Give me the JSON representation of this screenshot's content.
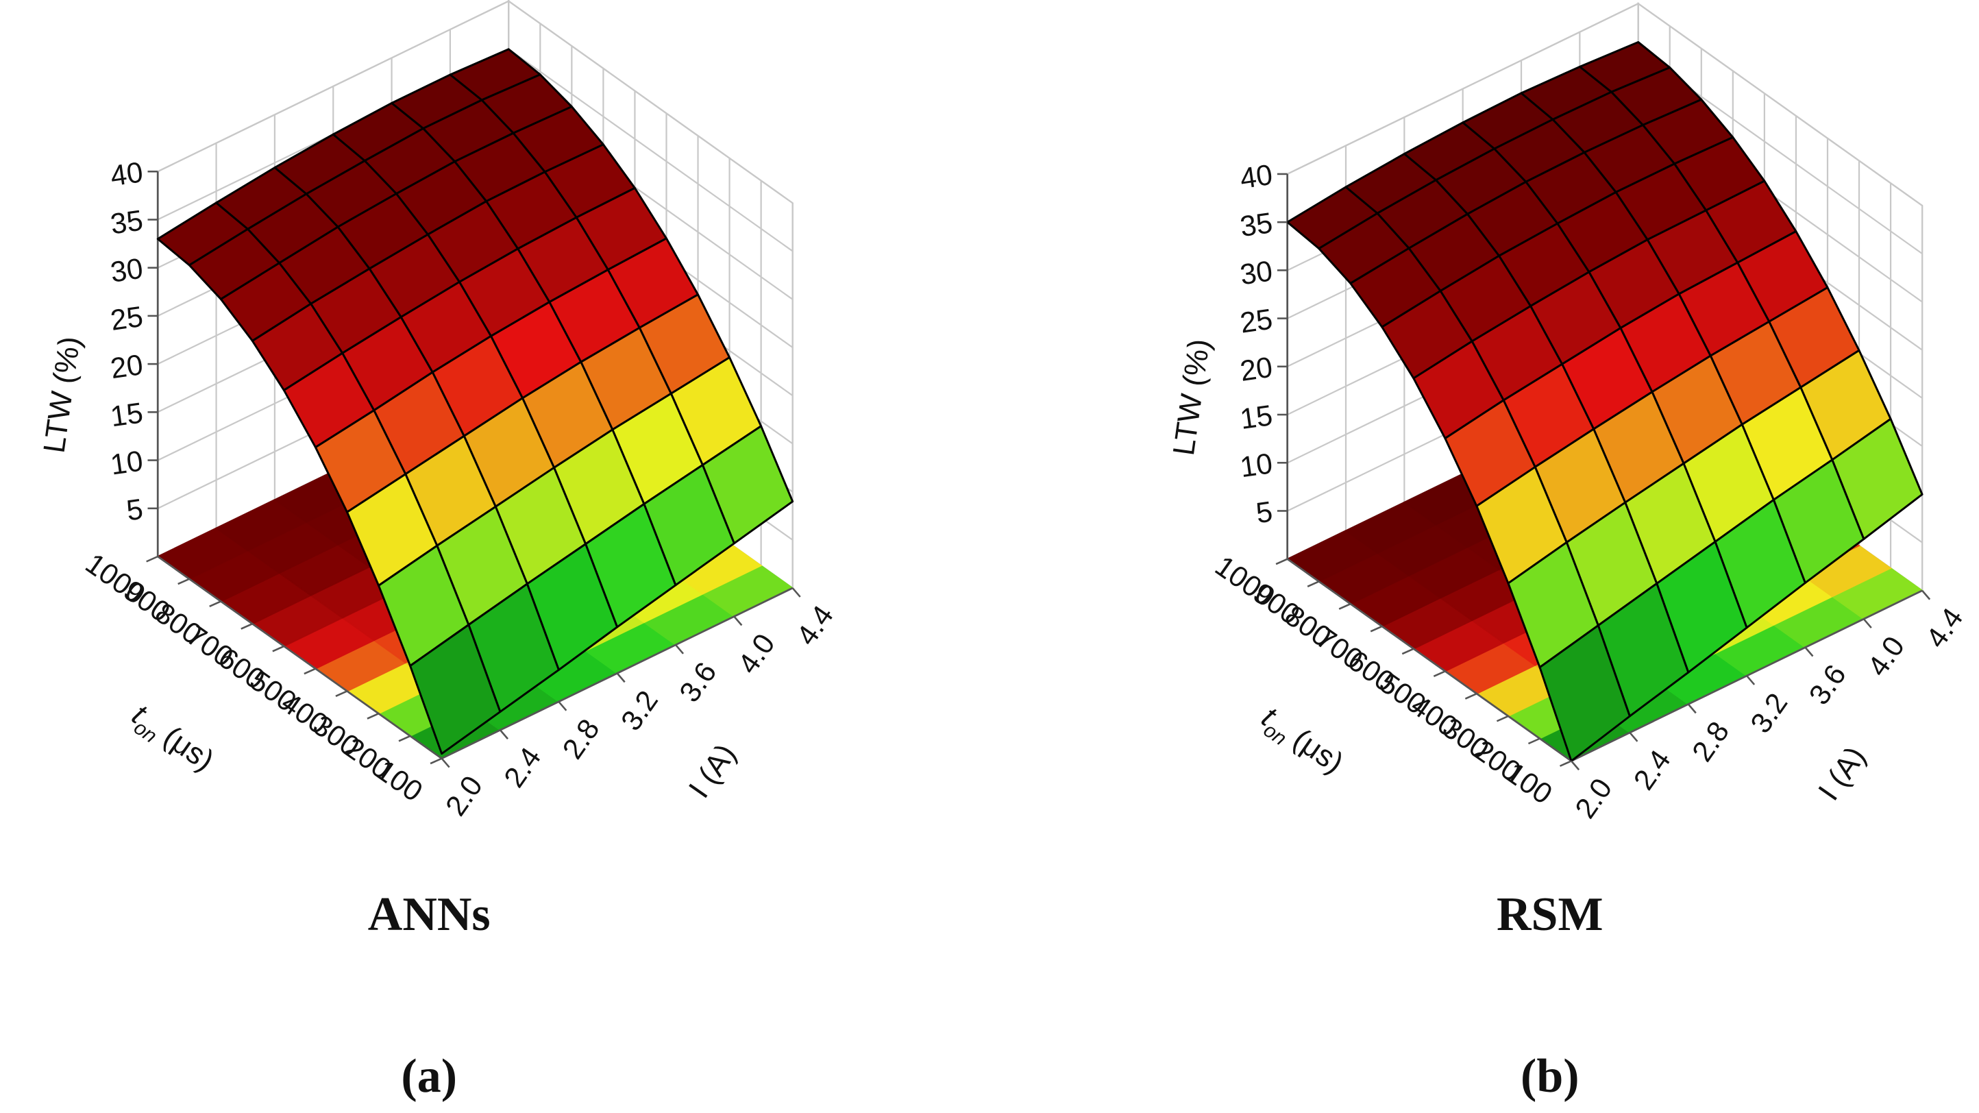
{
  "chart_data": [
    {
      "type": "surface3d",
      "title": "ANNs",
      "label": "(a)",
      "zlabel": "LTW (%)",
      "xlabel": [
        "t",
        "on",
        "(μs)"
      ],
      "ylabel": "I (A)",
      "x": [
        100,
        200,
        300,
        400,
        500,
        600,
        700,
        800,
        900,
        1000
      ],
      "y": [
        2.0,
        2.4,
        2.8,
        3.2,
        3.6,
        4.0,
        4.4
      ],
      "values": [
        [
          0.5,
          7.3,
          13.3,
          18.6,
          23.0,
          26.6,
          29.4,
          31.4,
          32.6,
          33.0
        ],
        [
          1.9,
          8.6,
          14.5,
          19.6,
          23.9,
          27.5,
          30.3,
          32.2,
          33.4,
          33.8
        ],
        [
          3.3,
          9.9,
          15.6,
          20.6,
          24.9,
          28.3,
          31.0,
          33.0,
          34.1,
          34.5
        ],
        [
          4.8,
          11.1,
          16.7,
          21.6,
          25.7,
          29.0,
          31.6,
          33.5,
          34.6,
          35.0
        ],
        [
          6.2,
          12.3,
          17.7,
          22.4,
          26.3,
          29.5,
          32.1,
          33.9,
          35.0,
          35.3
        ],
        [
          7.6,
          13.4,
          18.5,
          23.0,
          26.7,
          29.8,
          32.2,
          33.9,
          35.0,
          35.3
        ],
        [
          9.0,
          14.5,
          19.3,
          23.5,
          27.0,
          29.9,
          32.1,
          33.7,
          34.7,
          35.0
        ]
      ],
      "xlim": [
        100,
        1000
      ],
      "ylim": [
        2.0,
        4.4
      ],
      "zlim": [
        0,
        40
      ],
      "xticks": [
        100,
        200,
        300,
        400,
        500,
        600,
        700,
        800,
        900,
        1000
      ],
      "yticks": [
        {
          "value": 2.0,
          "label": "2.0"
        },
        2.4,
        2.8,
        3.2,
        3.6,
        {
          "value": 4.0,
          "label": "4.0"
        },
        4.4
      ],
      "zticks": [
        5,
        10,
        15,
        20,
        25,
        30,
        35,
        40
      ],
      "colormap": [
        "#0b5a0b",
        "#20d020",
        "#f2f21e",
        "#e41010",
        "#7a0000",
        "#4a0000"
      ],
      "grid": true
    },
    {
      "type": "surface3d",
      "title": "RSM",
      "label": "(b)",
      "zlabel": "LTW (%)",
      "xlabel": [
        "t",
        "on",
        "(μs)"
      ],
      "ylabel": "I (A)",
      "x": [
        100,
        200,
        300,
        400,
        500,
        600,
        700,
        800,
        900,
        1000
      ],
      "y": [
        2.0,
        2.4,
        2.8,
        3.2,
        3.6,
        4.0,
        4.4
      ],
      "values": [
        [
          0.0,
          7.4,
          13.8,
          19.5,
          24.2,
          28.1,
          31.1,
          33.3,
          34.6,
          35.0
        ],
        [
          1.7,
          8.8,
          15.1,
          20.6,
          25.2,
          29.0,
          31.9,
          34.0,
          35.3,
          35.7
        ],
        [
          3.3,
          10.2,
          16.3,
          21.6,
          26.0,
          29.7,
          32.6,
          34.6,
          35.8,
          36.2
        ],
        [
          5.0,
          11.6,
          17.4,
          22.5,
          26.8,
          30.3,
          33.0,
          35.0,
          36.1,
          36.5
        ],
        [
          6.7,
          13.0,
          18.5,
          23.3,
          27.4,
          30.7,
          33.3,
          35.1,
          36.2,
          36.6
        ],
        [
          8.3,
          14.2,
          19.4,
          23.9,
          27.7,
          30.8,
          33.3,
          35.0,
          36.1,
          36.4
        ],
        [
          10.0,
          15.5,
          20.3,
          24.5,
          28.0,
          30.9,
          33.1,
          34.7,
          35.7,
          36.0
        ]
      ],
      "xlim": [
        100,
        1000
      ],
      "ylim": [
        2.0,
        4.4
      ],
      "zlim": [
        0,
        40
      ],
      "xticks": [
        100,
        200,
        300,
        400,
        500,
        600,
        700,
        800,
        900,
        1000
      ],
      "yticks": [
        {
          "value": 2.0,
          "label": "2.0"
        },
        2.4,
        2.8,
        3.2,
        3.6,
        {
          "value": 4.0,
          "label": "4.0"
        },
        4.4
      ],
      "zticks": [
        5,
        10,
        15,
        20,
        25,
        30,
        35,
        40
      ],
      "colormap": [
        "#0b5a0b",
        "#20d020",
        "#f2f21e",
        "#e41010",
        "#7a0000",
        "#4a0000"
      ],
      "grid": true
    }
  ]
}
